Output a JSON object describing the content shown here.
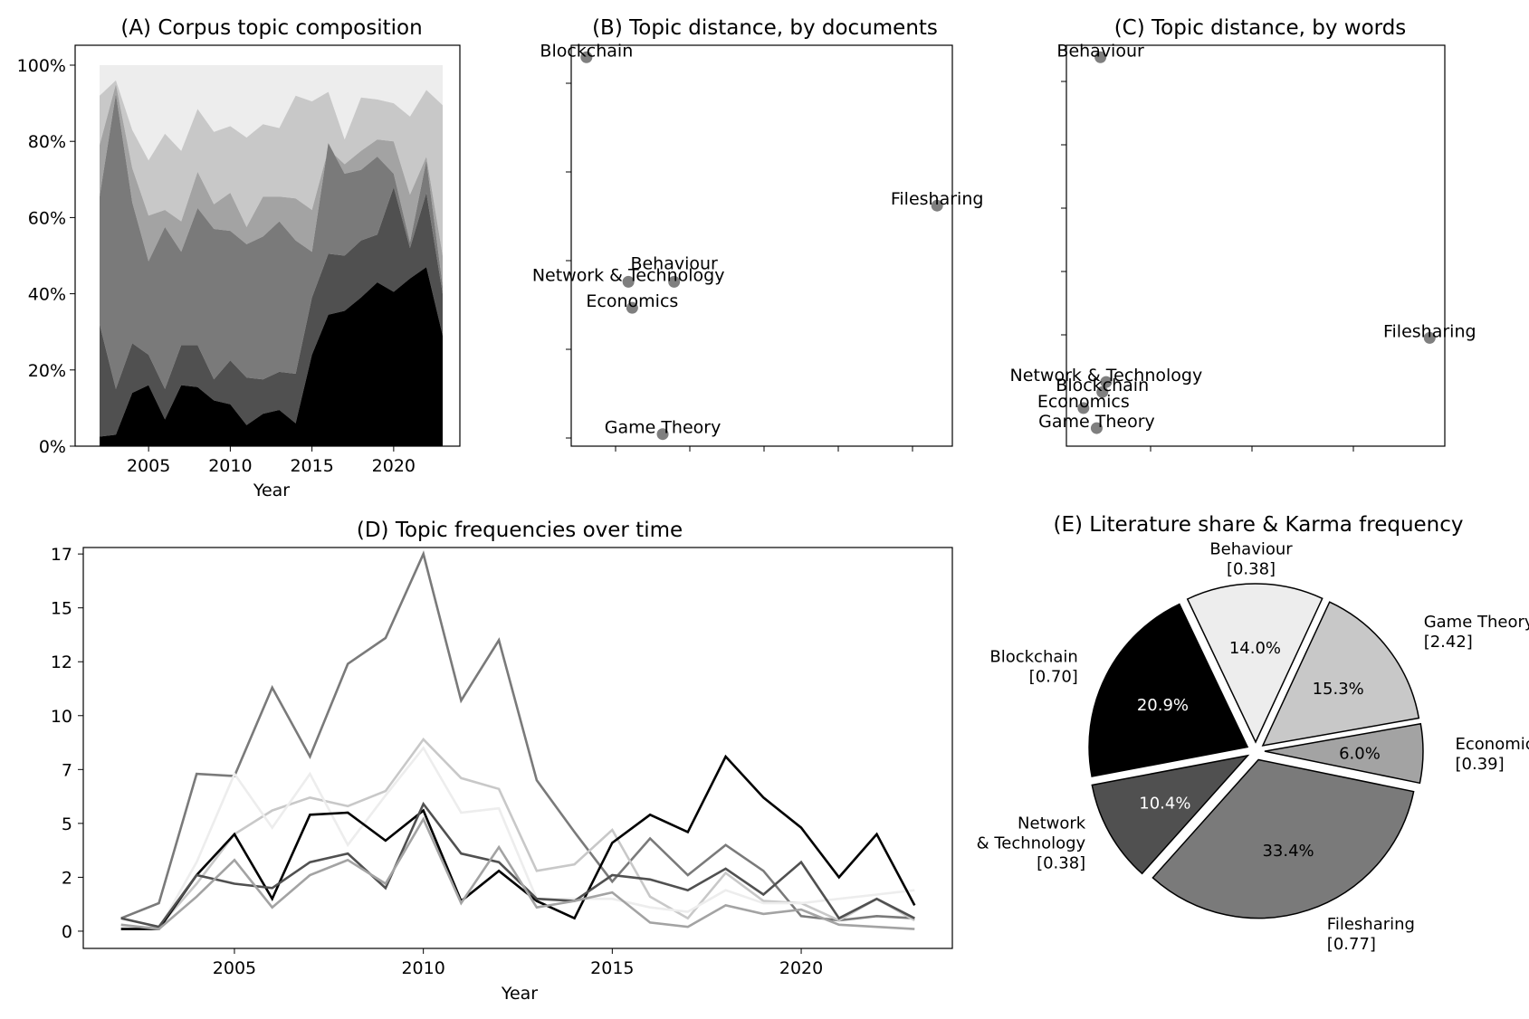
{
  "chart_data": [
    {
      "id": "A",
      "type": "area",
      "title": "(A) Corpus topic composition",
      "xlabel": "Year",
      "ylabel": "",
      "xlim": [
        2002,
        2023
      ],
      "ylim": [
        0,
        1
      ],
      "xticks": [
        2005,
        2010,
        2015,
        2020
      ],
      "yticks": [
        {
          "v": 0,
          "label": "0%"
        },
        {
          "v": 0.2,
          "label": "20%"
        },
        {
          "v": 0.4,
          "label": "40%"
        },
        {
          "v": 0.6,
          "label": "60%"
        },
        {
          "v": 0.8,
          "label": "80%"
        },
        {
          "v": 1.0,
          "label": "100%"
        }
      ],
      "years": [
        2002,
        2003,
        2004,
        2005,
        2006,
        2007,
        2008,
        2009,
        2010,
        2011,
        2012,
        2013,
        2014,
        2015,
        2016,
        2017,
        2018,
        2019,
        2020,
        2021,
        2022,
        2023
      ],
      "boundaries_cumulative": [
        [
          0.025,
          0.03,
          0.14,
          0.16,
          0.07,
          0.16,
          0.155,
          0.12,
          0.11,
          0.055,
          0.085,
          0.095,
          0.06,
          0.24,
          0.345,
          0.355,
          0.39,
          0.43,
          0.405,
          0.44,
          0.47,
          0.29
        ],
        [
          0.32,
          0.15,
          0.27,
          0.24,
          0.15,
          0.265,
          0.265,
          0.175,
          0.225,
          0.18,
          0.175,
          0.195,
          0.19,
          0.39,
          0.505,
          0.5,
          0.54,
          0.555,
          0.68,
          0.52,
          0.665,
          0.4
        ],
        [
          0.655,
          0.925,
          0.64,
          0.485,
          0.575,
          0.51,
          0.625,
          0.57,
          0.565,
          0.53,
          0.55,
          0.59,
          0.54,
          0.51,
          0.795,
          0.715,
          0.725,
          0.76,
          0.715,
          0.535,
          0.75,
          0.42
        ],
        [
          0.79,
          0.95,
          0.73,
          0.605,
          0.62,
          0.59,
          0.72,
          0.635,
          0.665,
          0.575,
          0.655,
          0.655,
          0.65,
          0.62,
          0.78,
          0.74,
          0.775,
          0.805,
          0.8,
          0.66,
          0.76,
          0.5
        ],
        [
          0.92,
          0.96,
          0.83,
          0.75,
          0.82,
          0.775,
          0.885,
          0.825,
          0.84,
          0.81,
          0.845,
          0.835,
          0.92,
          0.905,
          0.93,
          0.805,
          0.915,
          0.91,
          0.9,
          0.865,
          0.935,
          0.895
        ],
        [
          1,
          1,
          1,
          1,
          1,
          1,
          1,
          1,
          1,
          1,
          1,
          1,
          1,
          1,
          1,
          1,
          1,
          1,
          1,
          1,
          1,
          1
        ]
      ],
      "layer_colors": [
        "#000000",
        "#505050",
        "#7a7a7a",
        "#a3a3a3",
        "#c8c8c8",
        "#ededed"
      ]
    },
    {
      "id": "B",
      "type": "scatter",
      "title": "(B) Topic distance, by documents",
      "point_color": "#7f7f7f",
      "points": [
        {
          "label": "Blockchain",
          "x": 0.04,
          "y": 0.97
        },
        {
          "label": "Filesharing",
          "x": 0.96,
          "y": 0.6
        },
        {
          "label": "Behaviour",
          "x": 0.27,
          "y": 0.41
        },
        {
          "label": "Network & Technology",
          "x": 0.15,
          "y": 0.41
        },
        {
          "label": "Economics",
          "x": 0.16,
          "y": 0.345
        },
        {
          "label": "Game Theory",
          "x": 0.24,
          "y": 0.03
        }
      ]
    },
    {
      "id": "C",
      "type": "scatter",
      "title": "(C) Topic distance, by words",
      "point_color": "#7f7f7f",
      "points": [
        {
          "label": "Behaviour",
          "x": 0.09,
          "y": 0.97
        },
        {
          "label": "Filesharing",
          "x": 0.96,
          "y": 0.27
        },
        {
          "label": "Network & Technology",
          "x": 0.105,
          "y": 0.16
        },
        {
          "label": "Blockchain",
          "x": 0.095,
          "y": 0.135
        },
        {
          "label": "Economics",
          "x": 0.045,
          "y": 0.095
        },
        {
          "label": "Game Theory",
          "x": 0.08,
          "y": 0.045
        }
      ]
    },
    {
      "id": "D",
      "type": "line",
      "title": "(D) Topic frequencies over time",
      "xlabel": "Year",
      "ylabel": "",
      "xlim": [
        2001,
        2024
      ],
      "ylim": [
        -0.8,
        17.8
      ],
      "xticks": [
        2005,
        2010,
        2015,
        2020
      ],
      "yticks": [
        {
          "v": 0,
          "label": "0"
        },
        {
          "v": 2.5,
          "label": "2"
        },
        {
          "v": 5,
          "label": "5"
        },
        {
          "v": 7.5,
          "label": "7"
        },
        {
          "v": 10,
          "label": "10"
        },
        {
          "v": 12.5,
          "label": "12"
        },
        {
          "v": 15,
          "label": "15"
        },
        {
          "v": 17.5,
          "label": "17"
        }
      ],
      "x": [
        2002,
        2003,
        2004,
        2005,
        2006,
        2007,
        2008,
        2009,
        2010,
        2011,
        2012,
        2013,
        2014,
        2015,
        2016,
        2017,
        2018,
        2019,
        2020,
        2021,
        2022,
        2023
      ],
      "series": [
        {
          "color": "#7a7a7a",
          "values": [
            0.6,
            1.3,
            7.3,
            7.2,
            11.3,
            8.1,
            12.4,
            13.6,
            17.5,
            10.7,
            13.5,
            7.0,
            4.6,
            2.3,
            4.3,
            2.6,
            4.0,
            2.8,
            0.7,
            0.5,
            0.7,
            0.6
          ]
        },
        {
          "color": "#c8c8c8",
          "values": [
            0.1,
            0.2,
            2.2,
            4.5,
            5.6,
            6.2,
            5.8,
            6.5,
            8.9,
            7.1,
            6.6,
            2.8,
            3.1,
            4.7,
            1.6,
            0.6,
            2.7,
            1.4,
            1.3,
            0.5,
            1.5,
            0.5
          ]
        },
        {
          "color": "#ededed",
          "values": [
            0.2,
            0.1,
            3.2,
            7.3,
            4.8,
            7.3,
            4.0,
            6.3,
            8.5,
            5.5,
            5.7,
            1.5,
            1.5,
            1.5,
            1.1,
            0.9,
            1.9,
            1.3,
            1.3,
            1.5,
            1.7,
            1.9
          ]
        },
        {
          "color": "#000000",
          "values": [
            0.1,
            0.1,
            2.6,
            4.5,
            1.5,
            5.4,
            5.5,
            4.2,
            5.6,
            1.4,
            2.8,
            1.4,
            0.6,
            4.1,
            5.4,
            4.6,
            8.1,
            6.2,
            4.8,
            2.5,
            4.5,
            1.2
          ]
        },
        {
          "color": "#505050",
          "values": [
            0.6,
            0.2,
            2.6,
            2.2,
            2.0,
            3.2,
            3.6,
            2.0,
            5.9,
            3.6,
            3.2,
            1.5,
            1.4,
            2.6,
            2.4,
            1.9,
            2.9,
            1.7,
            3.2,
            0.6,
            1.5,
            0.6
          ]
        },
        {
          "color": "#a3a3a3",
          "values": [
            0.3,
            0.1,
            1.6,
            3.3,
            1.1,
            2.6,
            3.3,
            2.2,
            5.2,
            1.3,
            3.9,
            1.1,
            1.4,
            1.8,
            0.4,
            0.2,
            1.2,
            0.8,
            1.0,
            0.3,
            0.2,
            0.1
          ]
        }
      ]
    },
    {
      "id": "E",
      "type": "pie",
      "title": "(E) Literature share & Karma frequency",
      "slices": [
        {
          "name": "Game Theory",
          "karma": "[2.42]",
          "pct_label": "15.3%",
          "value": 15.3,
          "color": "#c8c8c8"
        },
        {
          "name": "Behaviour",
          "karma": "[0.38]",
          "pct_label": "14.0%",
          "value": 14.0,
          "color": "#ededed"
        },
        {
          "name": "Blockchain",
          "karma": "[0.70]",
          "pct_label": "20.9%",
          "value": 20.9,
          "color": "#000000"
        },
        {
          "name": "Network\n& Technology",
          "karma": "[0.38]",
          "pct_label": "10.4%",
          "value": 10.4,
          "color": "#505050"
        },
        {
          "name": "Filesharing",
          "karma": "[0.77]",
          "pct_label": "33.4%",
          "value": 33.4,
          "color": "#7a7a7a"
        },
        {
          "name": "Economics",
          "karma": "[0.39]",
          "pct_label": "6.0%",
          "value": 6.0,
          "color": "#a3a3a3"
        }
      ]
    }
  ]
}
